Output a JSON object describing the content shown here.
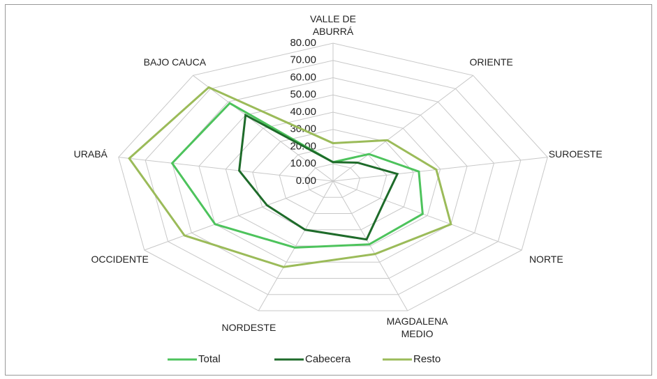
{
  "chart_data": {
    "type": "radar",
    "categories": [
      "VALLE DE ABURRÁ",
      "ORIENTE",
      "SUROESTE",
      "NORTE",
      "MAGDALENA MEDIO",
      "NORDESTE",
      "OCCIDENTE",
      "URABÁ",
      "BAJO CAUCA"
    ],
    "series": [
      {
        "name": "Total",
        "color": "#4dc35c",
        "values": [
          11,
          20.5,
          32,
          38,
          39,
          41,
          50,
          60,
          59
        ]
      },
      {
        "name": "Cabecera",
        "color": "#1e6b2a",
        "values": [
          11,
          14,
          24,
          22,
          36,
          30,
          28,
          35,
          50
        ]
      },
      {
        "name": "Resto",
        "color": "#9bbb59",
        "values": [
          22,
          31,
          38.5,
          50,
          45,
          53,
          63,
          76,
          71
        ]
      }
    ],
    "ylim": [
      0,
      80
    ],
    "yticks": [
      {
        "value": 0,
        "label": "0.00"
      },
      {
        "value": 10,
        "label": "10.00"
      },
      {
        "value": 20,
        "label": "20.00"
      },
      {
        "value": 30,
        "label": "30.00"
      },
      {
        "value": 40,
        "label": "40.00"
      },
      {
        "value": 50,
        "label": "50.00"
      },
      {
        "value": 60,
        "label": "60.00"
      },
      {
        "value": 70,
        "label": "70.00"
      },
      {
        "value": 80,
        "label": "80.00"
      }
    ],
    "grid": true,
    "legend": "bottom"
  }
}
